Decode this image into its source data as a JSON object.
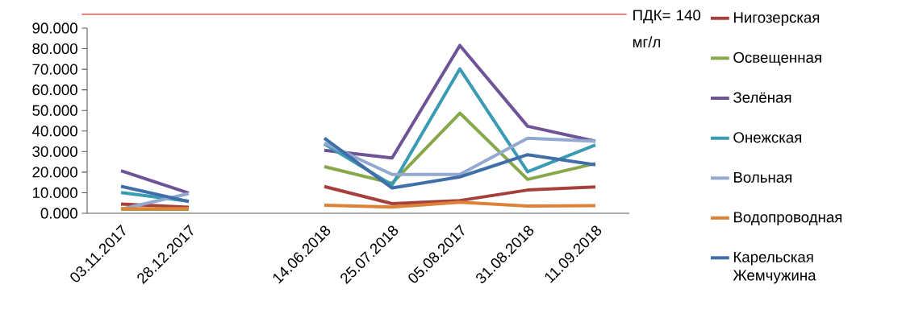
{
  "chart_data": {
    "type": "line",
    "categories": [
      "03.11.2017",
      "28.12.2017",
      null,
      "14.06.2018",
      "25.07.2018",
      "05.08.2017",
      "31.08.2018",
      "11.09.2018"
    ],
    "series": [
      {
        "name": "Нигозерская",
        "color": "#a5403c",
        "values": [
          4.5,
          2.9,
          null,
          13.0,
          4.7,
          6.2,
          11.3,
          12.8
        ]
      },
      {
        "name": "Освещенная",
        "color": "#87a84a",
        "values": [
          2.0,
          2.0,
          null,
          22.7,
          14.6,
          48.7,
          16.5,
          24.2
        ]
      },
      {
        "name": "Зелёная",
        "color": "#6e5496",
        "values": [
          20.7,
          9.8,
          null,
          30.6,
          26.9,
          81.6,
          42.3,
          35.0
        ]
      },
      {
        "name": "Онежская",
        "color": "#3b9bb4",
        "values": [
          10.1,
          5.9,
          null,
          33.7,
          13.8,
          70.2,
          20.2,
          33.2
        ]
      },
      {
        "name": "Вольная",
        "color": "#93a9d0",
        "values": [
          2.0,
          9.6,
          null,
          34.2,
          18.9,
          18.9,
          36.5,
          35.0
        ]
      },
      {
        "name": "Водопроводная",
        "color": "#dd8237",
        "values": [
          2.2,
          2.2,
          null,
          3.9,
          3.0,
          5.4,
          3.5,
          3.7
        ]
      },
      {
        "name": "Карельская Жемчужина",
        "color": "#3f6ea8",
        "values": [
          13.1,
          5.7,
          null,
          36.5,
          12.3,
          17.7,
          28.5,
          23.6
        ]
      }
    ],
    "ylim": [
      0,
      90
    ],
    "yticks": [
      {
        "value": 0,
        "label": "0.000"
      },
      {
        "value": 10,
        "label": "10.000"
      },
      {
        "value": 20,
        "label": "20.000"
      },
      {
        "value": 30,
        "label": "30.000"
      },
      {
        "value": 40,
        "label": "40.000"
      },
      {
        "value": 50,
        "label": "50.000"
      },
      {
        "value": 60,
        "label": "60.000"
      },
      {
        "value": 70,
        "label": "70.000"
      },
      {
        "value": 80,
        "label": "80.000"
      },
      {
        "value": 90,
        "label": "90.000"
      }
    ],
    "annotations": [
      "ПДК= 140 мг/л"
    ],
    "grid": false,
    "legend": "right",
    "marker": "none",
    "line_style": "solid"
  }
}
